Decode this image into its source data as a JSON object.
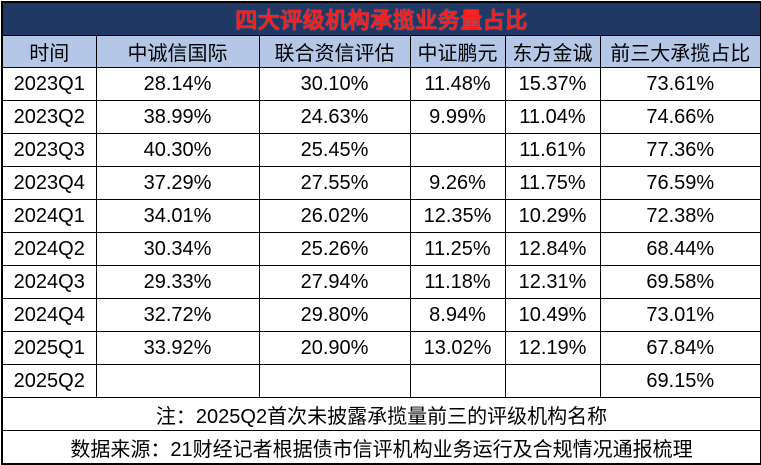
{
  "chart_data": {
    "type": "table",
    "title": "四大评级机构承揽业务量占比",
    "columns": [
      "时间",
      "中诚信国际",
      "联合资信评估",
      "中证鹏元",
      "东方金诚",
      "前三大承揽占比"
    ],
    "rows": [
      [
        "2023Q1",
        "28.14%",
        "30.10%",
        "11.48%",
        "15.37%",
        "73.61%"
      ],
      [
        "2023Q2",
        "38.99%",
        "24.63%",
        "9.99%",
        "11.04%",
        "74.66%"
      ],
      [
        "2023Q3",
        "40.30%",
        "25.45%",
        "",
        "11.61%",
        "77.36%"
      ],
      [
        "2023Q4",
        "37.29%",
        "27.55%",
        "9.26%",
        "11.75%",
        "76.59%"
      ],
      [
        "2024Q1",
        "34.01%",
        "26.02%",
        "12.35%",
        "10.29%",
        "72.38%"
      ],
      [
        "2024Q2",
        "30.34%",
        "25.26%",
        "11.25%",
        "12.84%",
        "68.44%"
      ],
      [
        "2024Q3",
        "29.33%",
        "27.94%",
        "11.18%",
        "12.31%",
        "69.58%"
      ],
      [
        "2024Q4",
        "32.72%",
        "29.80%",
        "8.94%",
        "10.49%",
        "73.01%"
      ],
      [
        "2025Q1",
        "33.92%",
        "20.90%",
        "13.02%",
        "12.19%",
        "67.84%"
      ],
      [
        "2025Q2",
        "",
        "",
        "",
        "",
        "69.15%"
      ]
    ],
    "note": "注：2025Q2首次未披露承揽量前三的评级机构名称",
    "source": "数据来源：21财经记者根据债市信评机构业务运行及合规情况通报梳理"
  },
  "colors": {
    "title_bg": "#1F3864",
    "title_text": "#FF1A1A",
    "header_bg": "#B4C7E7",
    "body_bg": "#FFFFFF",
    "border": "#000000",
    "body_text": "#000000"
  }
}
